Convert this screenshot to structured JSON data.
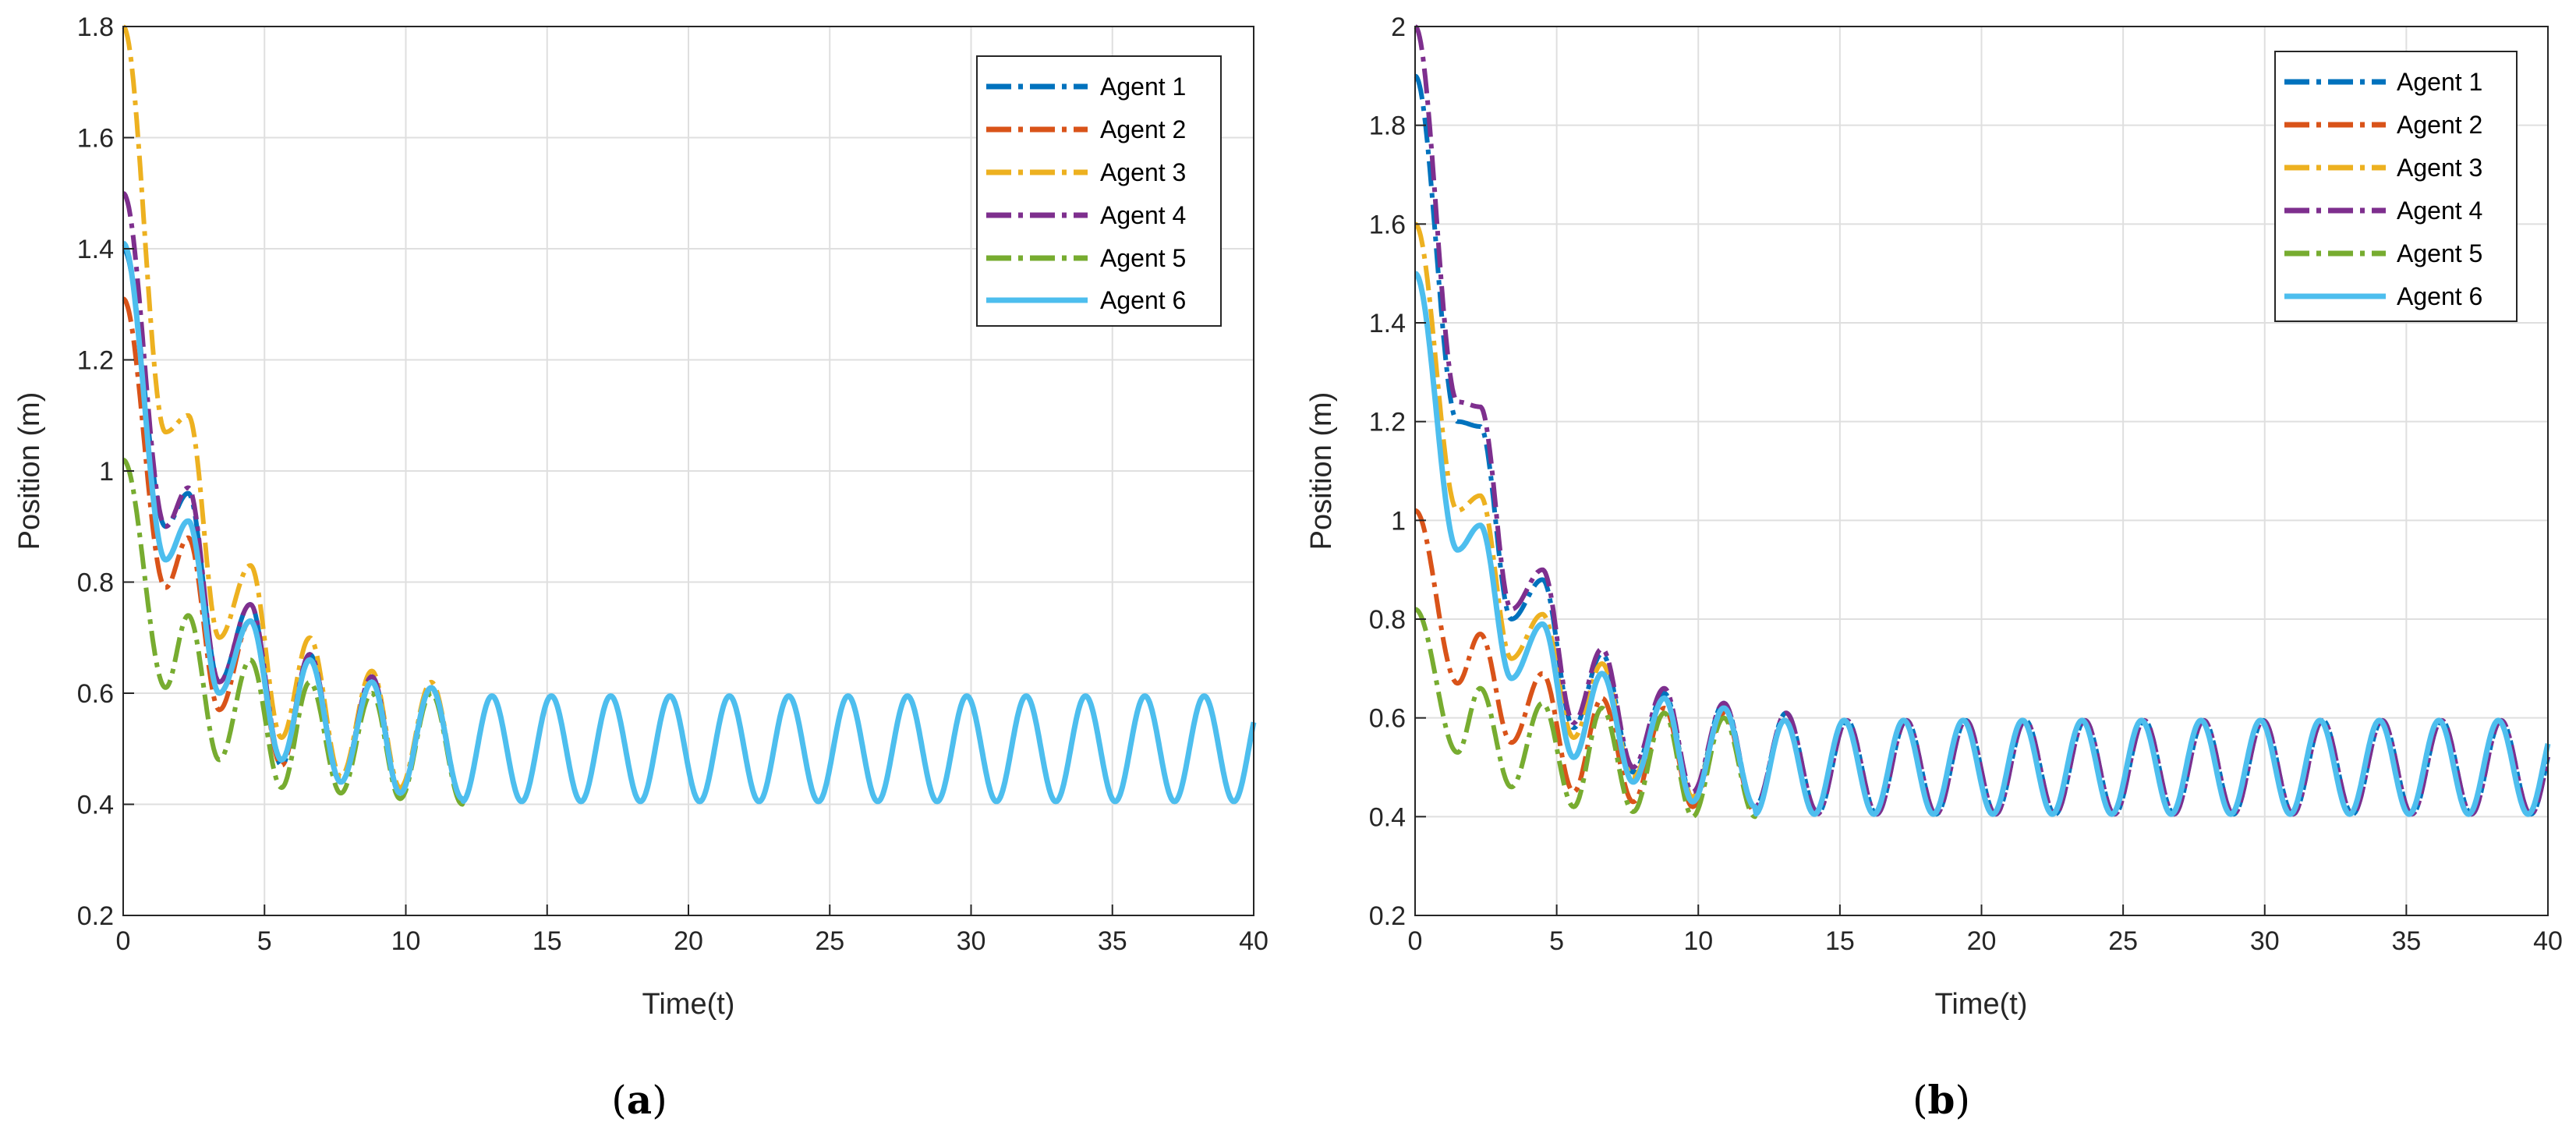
{
  "colors": {
    "agent1": "#0072BD",
    "agent2": "#D95319",
    "agent3": "#EDB120",
    "agent4": "#7E2F8E",
    "agent5": "#77AC30",
    "agent6": "#4DBEEE",
    "grid": "#DFDFDF",
    "axis": "#262626"
  },
  "chart_data": [
    {
      "type": "line",
      "caption_open": "(",
      "caption_letter": "a",
      "caption_close": ")",
      "xlabel": "Time(t)",
      "ylabel": "Position (m)",
      "xlim": [
        0,
        40
      ],
      "ylim": [
        0.2,
        1.8
      ],
      "xticks": [
        0,
        5,
        10,
        15,
        20,
        25,
        30,
        35,
        40
      ],
      "yticks": [
        0.2,
        0.4,
        0.6,
        0.8,
        1,
        1.2,
        1.4,
        1.6,
        1.8
      ],
      "grid": true,
      "legend_position": "top-right",
      "steady_state": {
        "center": 0.5,
        "amplitude": 0.095,
        "period": 2.1
      },
      "series": [
        {
          "name": "Agent 1",
          "style": "dashdot",
          "initial": 1.4,
          "transient": [
            [
              0,
              1.4
            ],
            [
              1.5,
              0.9
            ],
            [
              2.3,
              0.96
            ],
            [
              3.4,
              0.62
            ],
            [
              4.5,
              0.76
            ],
            [
              5.6,
              0.47
            ],
            [
              6.6,
              0.67
            ],
            [
              7.7,
              0.44
            ],
            [
              8.8,
              0.63
            ],
            [
              9.8,
              0.42
            ],
            [
              10.9,
              0.61
            ],
            [
              12,
              0.41
            ]
          ]
        },
        {
          "name": "Agent 2",
          "style": "dashdot",
          "initial": 1.31,
          "transient": [
            [
              0,
              1.31
            ],
            [
              1.5,
              0.79
            ],
            [
              2.3,
              0.88
            ],
            [
              3.4,
              0.57
            ],
            [
              4.5,
              0.73
            ],
            [
              5.6,
              0.47
            ],
            [
              6.6,
              0.66
            ],
            [
              7.7,
              0.44
            ],
            [
              8.8,
              0.62
            ],
            [
              9.8,
              0.42
            ],
            [
              10.9,
              0.61
            ],
            [
              12,
              0.41
            ]
          ]
        },
        {
          "name": "Agent 3",
          "style": "dashdot",
          "initial": 1.8,
          "transient": [
            [
              0,
              1.8
            ],
            [
              1.5,
              1.07
            ],
            [
              2.3,
              1.1
            ],
            [
              3.4,
              0.7
            ],
            [
              4.5,
              0.83
            ],
            [
              5.6,
              0.52
            ],
            [
              6.6,
              0.7
            ],
            [
              7.7,
              0.45
            ],
            [
              8.8,
              0.64
            ],
            [
              9.8,
              0.43
            ],
            [
              10.9,
              0.62
            ],
            [
              12,
              0.41
            ]
          ]
        },
        {
          "name": "Agent 4",
          "style": "dashdot",
          "initial": 1.5,
          "transient": [
            [
              0,
              1.5
            ],
            [
              1.5,
              0.9
            ],
            [
              2.3,
              0.97
            ],
            [
              3.4,
              0.62
            ],
            [
              4.5,
              0.76
            ],
            [
              5.6,
              0.48
            ],
            [
              6.6,
              0.67
            ],
            [
              7.7,
              0.44
            ],
            [
              8.8,
              0.63
            ],
            [
              9.8,
              0.42
            ],
            [
              10.9,
              0.61
            ],
            [
              12,
              0.41
            ]
          ]
        },
        {
          "name": "Agent 5",
          "style": "dashdot",
          "initial": 1.02,
          "transient": [
            [
              0,
              1.02
            ],
            [
              1.5,
              0.61
            ],
            [
              2.3,
              0.74
            ],
            [
              3.4,
              0.48
            ],
            [
              4.5,
              0.66
            ],
            [
              5.6,
              0.43
            ],
            [
              6.6,
              0.62
            ],
            [
              7.7,
              0.42
            ],
            [
              8.8,
              0.6
            ],
            [
              9.8,
              0.41
            ],
            [
              10.9,
              0.6
            ],
            [
              12,
              0.4
            ]
          ]
        },
        {
          "name": "Agent 6",
          "style": "solid",
          "initial": 1.41,
          "transient": [
            [
              0,
              1.41
            ],
            [
              1.5,
              0.84
            ],
            [
              2.3,
              0.91
            ],
            [
              3.4,
              0.6
            ],
            [
              4.5,
              0.73
            ],
            [
              5.6,
              0.48
            ],
            [
              6.6,
              0.66
            ],
            [
              7.7,
              0.44
            ],
            [
              8.8,
              0.62
            ],
            [
              9.8,
              0.42
            ],
            [
              10.9,
              0.61
            ],
            [
              12,
              0.41
            ]
          ]
        }
      ]
    },
    {
      "type": "line",
      "caption_open": "(",
      "caption_letter": "b",
      "caption_close": ")",
      "xlabel": "Time(t)",
      "ylabel": "Position (m)",
      "xlim": [
        0,
        40
      ],
      "ylim": [
        0.2,
        2
      ],
      "xticks": [
        0,
        5,
        10,
        15,
        20,
        25,
        30,
        35,
        40
      ],
      "yticks": [
        0.2,
        0.4,
        0.6,
        0.8,
        1,
        1.2,
        1.4,
        1.6,
        1.8,
        2
      ],
      "grid": true,
      "legend_position": "top-right",
      "steady_state": {
        "center": 0.5,
        "amplitude": 0.095,
        "period": 2.1
      },
      "series": [
        {
          "name": "Agent 1",
          "style": "dashdot",
          "initial": 1.9,
          "transient": [
            [
              0,
              1.9
            ],
            [
              1.5,
              1.2
            ],
            [
              2.3,
              1.19
            ],
            [
              3.4,
              0.8
            ],
            [
              4.5,
              0.88
            ],
            [
              5.6,
              0.58
            ],
            [
              6.6,
              0.73
            ],
            [
              7.7,
              0.49
            ],
            [
              8.8,
              0.65
            ],
            [
              9.8,
              0.44
            ],
            [
              10.9,
              0.63
            ],
            [
              12,
              0.42
            ],
            [
              13.1,
              0.61
            ],
            [
              14.2,
              0.41
            ]
          ]
        },
        {
          "name": "Agent 2",
          "style": "dashdot",
          "initial": 1.02,
          "transient": [
            [
              0,
              1.02
            ],
            [
              1.5,
              0.67
            ],
            [
              2.3,
              0.77
            ],
            [
              3.4,
              0.55
            ],
            [
              4.5,
              0.69
            ],
            [
              5.6,
              0.45
            ],
            [
              6.6,
              0.64
            ],
            [
              7.7,
              0.43
            ],
            [
              8.8,
              0.62
            ],
            [
              9.8,
              0.42
            ],
            [
              10.9,
              0.61
            ],
            [
              12,
              0.41
            ]
          ]
        },
        {
          "name": "Agent 3",
          "style": "dashdot",
          "initial": 1.6,
          "transient": [
            [
              0,
              1.6
            ],
            [
              1.5,
              1.02
            ],
            [
              2.3,
              1.05
            ],
            [
              3.4,
              0.72
            ],
            [
              4.5,
              0.81
            ],
            [
              5.6,
              0.56
            ],
            [
              6.6,
              0.71
            ],
            [
              7.7,
              0.48
            ],
            [
              8.8,
              0.64
            ],
            [
              9.8,
              0.44
            ],
            [
              10.9,
              0.62
            ],
            [
              12,
              0.42
            ]
          ]
        },
        {
          "name": "Agent 4",
          "style": "dashdot",
          "initial": 2.0,
          "transient": [
            [
              0,
              2.0
            ],
            [
              1.5,
              1.24
            ],
            [
              2.3,
              1.23
            ],
            [
              3.4,
              0.82
            ],
            [
              4.5,
              0.9
            ],
            [
              5.6,
              0.59
            ],
            [
              6.6,
              0.74
            ],
            [
              7.7,
              0.5
            ],
            [
              8.8,
              0.66
            ],
            [
              9.8,
              0.45
            ],
            [
              10.9,
              0.63
            ],
            [
              12,
              0.42
            ],
            [
              13.1,
              0.61
            ],
            [
              14.2,
              0.41
            ]
          ]
        },
        {
          "name": "Agent 5",
          "style": "dashdot",
          "initial": 0.82,
          "transient": [
            [
              0,
              0.82
            ],
            [
              1.5,
              0.53
            ],
            [
              2.3,
              0.66
            ],
            [
              3.4,
              0.46
            ],
            [
              4.5,
              0.63
            ],
            [
              5.6,
              0.42
            ],
            [
              6.6,
              0.62
            ],
            [
              7.7,
              0.41
            ],
            [
              8.8,
              0.61
            ],
            [
              9.8,
              0.4
            ],
            [
              10.9,
              0.6
            ],
            [
              12,
              0.4
            ]
          ]
        },
        {
          "name": "Agent 6",
          "style": "solid",
          "initial": 1.5,
          "transient": [
            [
              0,
              1.5
            ],
            [
              1.5,
              0.94
            ],
            [
              2.3,
              0.99
            ],
            [
              3.4,
              0.68
            ],
            [
              4.5,
              0.79
            ],
            [
              5.6,
              0.52
            ],
            [
              6.6,
              0.69
            ],
            [
              7.7,
              0.47
            ],
            [
              8.8,
              0.64
            ],
            [
              9.8,
              0.43
            ],
            [
              10.9,
              0.62
            ],
            [
              12,
              0.42
            ]
          ]
        }
      ]
    }
  ]
}
